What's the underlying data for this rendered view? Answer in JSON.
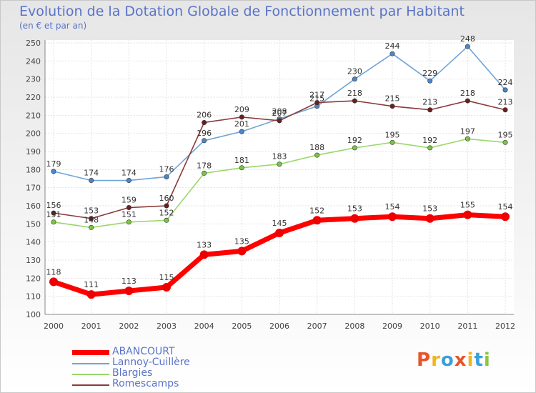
{
  "header": {
    "title": "Evolution de la Dotation Globale de Fonctionnement par Habitant",
    "subtitle": "(en € et par an)"
  },
  "logo": {
    "text": "Proxiti",
    "colors": [
      "#e8542a",
      "#f2b51d",
      "#3aa0dc",
      "#8cc63f"
    ]
  },
  "chart_data": {
    "type": "line",
    "title": "Evolution de la Dotation Globale de Fonctionnement par Habitant",
    "subtitle": "(en € et par an)",
    "x": [
      "2000",
      "2001",
      "2002",
      "2003",
      "2004",
      "2005",
      "2006",
      "2007",
      "2008",
      "2009",
      "2010",
      "2011",
      "2012"
    ],
    "ylim": [
      100,
      250
    ],
    "yticks": [
      100,
      110,
      120,
      130,
      140,
      150,
      160,
      170,
      180,
      190,
      200,
      210,
      220,
      230,
      240,
      250
    ],
    "grid": true,
    "legend": "bottom-left",
    "series": [
      {
        "name": "Lannoy-Cuillère",
        "color": "#6fa5d6",
        "marker": "#4a86c8",
        "values": [
          179,
          174,
          174,
          176,
          196,
          201,
          208,
          215,
          230,
          244,
          229,
          248,
          224
        ]
      },
      {
        "name": "Blargies",
        "color": "#9ad86c",
        "marker": "#7cc444",
        "values": [
          151,
          148,
          151,
          152,
          178,
          181,
          183,
          188,
          192,
          195,
          192,
          197,
          195
        ]
      },
      {
        "name": "Romescamps",
        "color": "#8a3a3a",
        "marker": "#6b1f1f",
        "values": [
          156,
          153,
          159,
          160,
          206,
          209,
          207,
          217,
          218,
          215,
          213,
          218,
          213
        ]
      },
      {
        "name": "ABANCOURT",
        "color": "#ff0000",
        "marker": "#ee0000",
        "values": [
          118,
          111,
          113,
          115,
          133,
          135,
          145,
          152,
          153,
          154,
          153,
          155,
          154
        ]
      }
    ]
  }
}
